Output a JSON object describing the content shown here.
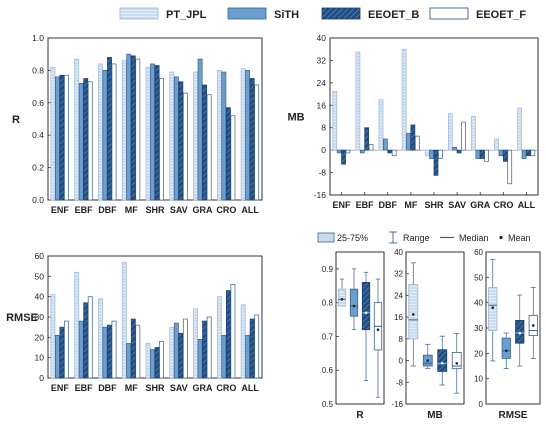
{
  "legend": {
    "entries": [
      "PT_JPL",
      "SiTH",
      "EEOET_B",
      "EEOET_F"
    ],
    "box_stats": {
      "range_label": "25-75%",
      "whisker_label": "Range",
      "median_label": "Median",
      "mean_label": "Mean"
    }
  },
  "colors": {
    "PT_JPL": "#c9dcef",
    "SiTH": "#6a9fcf",
    "EEOET_B": "#1f4f85",
    "EEOET_F": "#ffffff",
    "edge": "#3a5f8c",
    "axis": "#333333"
  },
  "chart_data": [
    {
      "id": "r",
      "type": "bar",
      "ylabel": "R",
      "ylim": [
        0,
        1.0
      ],
      "yticks": [
        "0.0",
        "0.2",
        "0.4",
        "0.6",
        "0.8",
        "1.0"
      ],
      "ytick_values": [
        0,
        0.2,
        0.4,
        0.6,
        0.8,
        1.0
      ],
      "categories": [
        "ENF",
        "EBF",
        "DBF",
        "MF",
        "SHR",
        "SAV",
        "GRA",
        "CRO",
        "ALL"
      ],
      "series": [
        {
          "name": "PT_JPL",
          "values": [
            0.82,
            0.87,
            0.84,
            0.86,
            0.82,
            0.79,
            0.79,
            0.8,
            0.81
          ]
        },
        {
          "name": "SiTH",
          "values": [
            0.76,
            0.72,
            0.8,
            0.9,
            0.84,
            0.76,
            0.87,
            0.79,
            0.8
          ]
        },
        {
          "name": "EEOET_B",
          "values": [
            0.77,
            0.75,
            0.88,
            0.89,
            0.83,
            0.73,
            0.71,
            0.57,
            0.75
          ]
        },
        {
          "name": "EEOET_F",
          "values": [
            0.77,
            0.73,
            0.84,
            0.87,
            0.75,
            0.66,
            0.65,
            0.52,
            0.71
          ]
        }
      ]
    },
    {
      "id": "mb",
      "type": "bar",
      "ylabel": "MB",
      "ylim": [
        -16,
        40
      ],
      "yticks": [
        "-16",
        "-8",
        "0",
        "8",
        "16",
        "24",
        "32",
        "40"
      ],
      "ytick_values": [
        -16,
        -8,
        0,
        8,
        16,
        24,
        32,
        40
      ],
      "categories": [
        "ENF",
        "EBF",
        "DBF",
        "MF",
        "SHR",
        "SAV",
        "GRA",
        "CRO",
        "ALL"
      ],
      "series": [
        {
          "name": "PT_JPL",
          "values": [
            21,
            35,
            18,
            36,
            -2,
            13,
            12,
            4,
            15
          ]
        },
        {
          "name": "SiTH",
          "values": [
            -1,
            -1,
            4,
            6,
            -3,
            1,
            -3,
            -2,
            -3
          ]
        },
        {
          "name": "EEOET_B",
          "values": [
            -5,
            8,
            -1,
            9,
            -9,
            -1,
            -3,
            -4,
            -2
          ]
        },
        {
          "name": "EEOET_F",
          "values": [
            -1,
            2,
            -2,
            5,
            -3,
            10,
            -4,
            -12,
            -2
          ]
        }
      ]
    },
    {
      "id": "rmse",
      "type": "bar",
      "ylabel": "RMSE",
      "ylim": [
        0,
        60
      ],
      "yticks": [
        "0",
        "10",
        "20",
        "30",
        "40",
        "50",
        "60"
      ],
      "ytick_values": [
        0,
        10,
        20,
        30,
        40,
        50,
        60
      ],
      "categories": [
        "ENF",
        "EBF",
        "DBF",
        "MF",
        "SHR",
        "SAV",
        "GRA",
        "CRO",
        "ALL"
      ],
      "series": [
        {
          "name": "PT_JPL",
          "values": [
            41,
            52,
            39,
            57,
            17,
            25,
            34,
            40,
            36
          ]
        },
        {
          "name": "SiTH",
          "values": [
            21,
            28,
            25,
            17,
            14,
            27,
            19,
            21,
            21
          ]
        },
        {
          "name": "EEOET_B",
          "values": [
            25,
            37,
            26,
            29,
            15,
            22,
            28,
            43,
            29
          ]
        },
        {
          "name": "EEOET_F",
          "values": [
            28,
            40,
            28,
            26,
            18,
            29,
            30,
            46,
            31
          ]
        }
      ]
    },
    {
      "id": "box_r",
      "type": "box",
      "xlabel": "R",
      "ylim": [
        0.5,
        0.95
      ],
      "yticks": [
        "0.5",
        "0.6",
        "0.7",
        "0.8",
        "0.9"
      ],
      "ytick_values": [
        0.5,
        0.6,
        0.7,
        0.8,
        0.9
      ],
      "boxes": [
        {
          "name": "PT_JPL",
          "min": 0.79,
          "q1": 0.79,
          "median": 0.81,
          "q3": 0.84,
          "max": 0.87,
          "mean": 0.81
        },
        {
          "name": "SiTH",
          "min": 0.72,
          "q1": 0.76,
          "median": 0.79,
          "q3": 0.84,
          "max": 0.9,
          "mean": 0.79
        },
        {
          "name": "EEOET_B",
          "min": 0.57,
          "q1": 0.72,
          "median": 0.77,
          "q3": 0.86,
          "max": 0.89,
          "mean": 0.77
        },
        {
          "name": "EEOET_F",
          "min": 0.52,
          "q1": 0.66,
          "median": 0.73,
          "q3": 0.8,
          "max": 0.87,
          "mean": 0.72
        }
      ]
    },
    {
      "id": "box_mb",
      "type": "box",
      "xlabel": "MB",
      "ylim": [
        -16,
        40
      ],
      "yticks": [
        "-16",
        "-8",
        "0",
        "8",
        "16",
        "24",
        "32",
        "40"
      ],
      "ytick_values": [
        -16,
        -8,
        0,
        8,
        16,
        24,
        32,
        40
      ],
      "boxes": [
        {
          "name": "PT_JPL",
          "min": -2,
          "q1": 8,
          "median": 15,
          "q3": 28,
          "max": 36,
          "mean": 17
        },
        {
          "name": "SiTH",
          "min": -3,
          "q1": -2,
          "median": -1,
          "q3": 2,
          "max": 6,
          "mean": 0
        },
        {
          "name": "EEOET_B",
          "min": -9,
          "q1": -4,
          "median": -1,
          "q3": 4,
          "max": 9,
          "mean": -1
        },
        {
          "name": "EEOET_F",
          "min": -12,
          "q1": -3,
          "median": -2,
          "q3": 3,
          "max": 10,
          "mean": -1
        }
      ]
    },
    {
      "id": "box_rmse",
      "type": "box",
      "xlabel": "RMSE",
      "ylim": [
        0,
        60
      ],
      "yticks": [
        "0",
        "10",
        "20",
        "30",
        "40",
        "50",
        "60"
      ],
      "ytick_values": [
        0,
        10,
        20,
        30,
        40,
        50,
        60
      ],
      "boxes": [
        {
          "name": "PT_JPL",
          "min": 17,
          "q1": 29,
          "median": 39,
          "q3": 46,
          "max": 57,
          "mean": 38
        },
        {
          "name": "SiTH",
          "min": 14,
          "q1": 18,
          "median": 21,
          "q3": 26,
          "max": 28,
          "mean": 21
        },
        {
          "name": "EEOET_B",
          "min": 15,
          "q1": 24,
          "median": 28,
          "q3": 33,
          "max": 43,
          "mean": 28
        },
        {
          "name": "EEOET_F",
          "min": 18,
          "q1": 27,
          "median": 29,
          "q3": 35,
          "max": 46,
          "mean": 31
        }
      ]
    }
  ]
}
